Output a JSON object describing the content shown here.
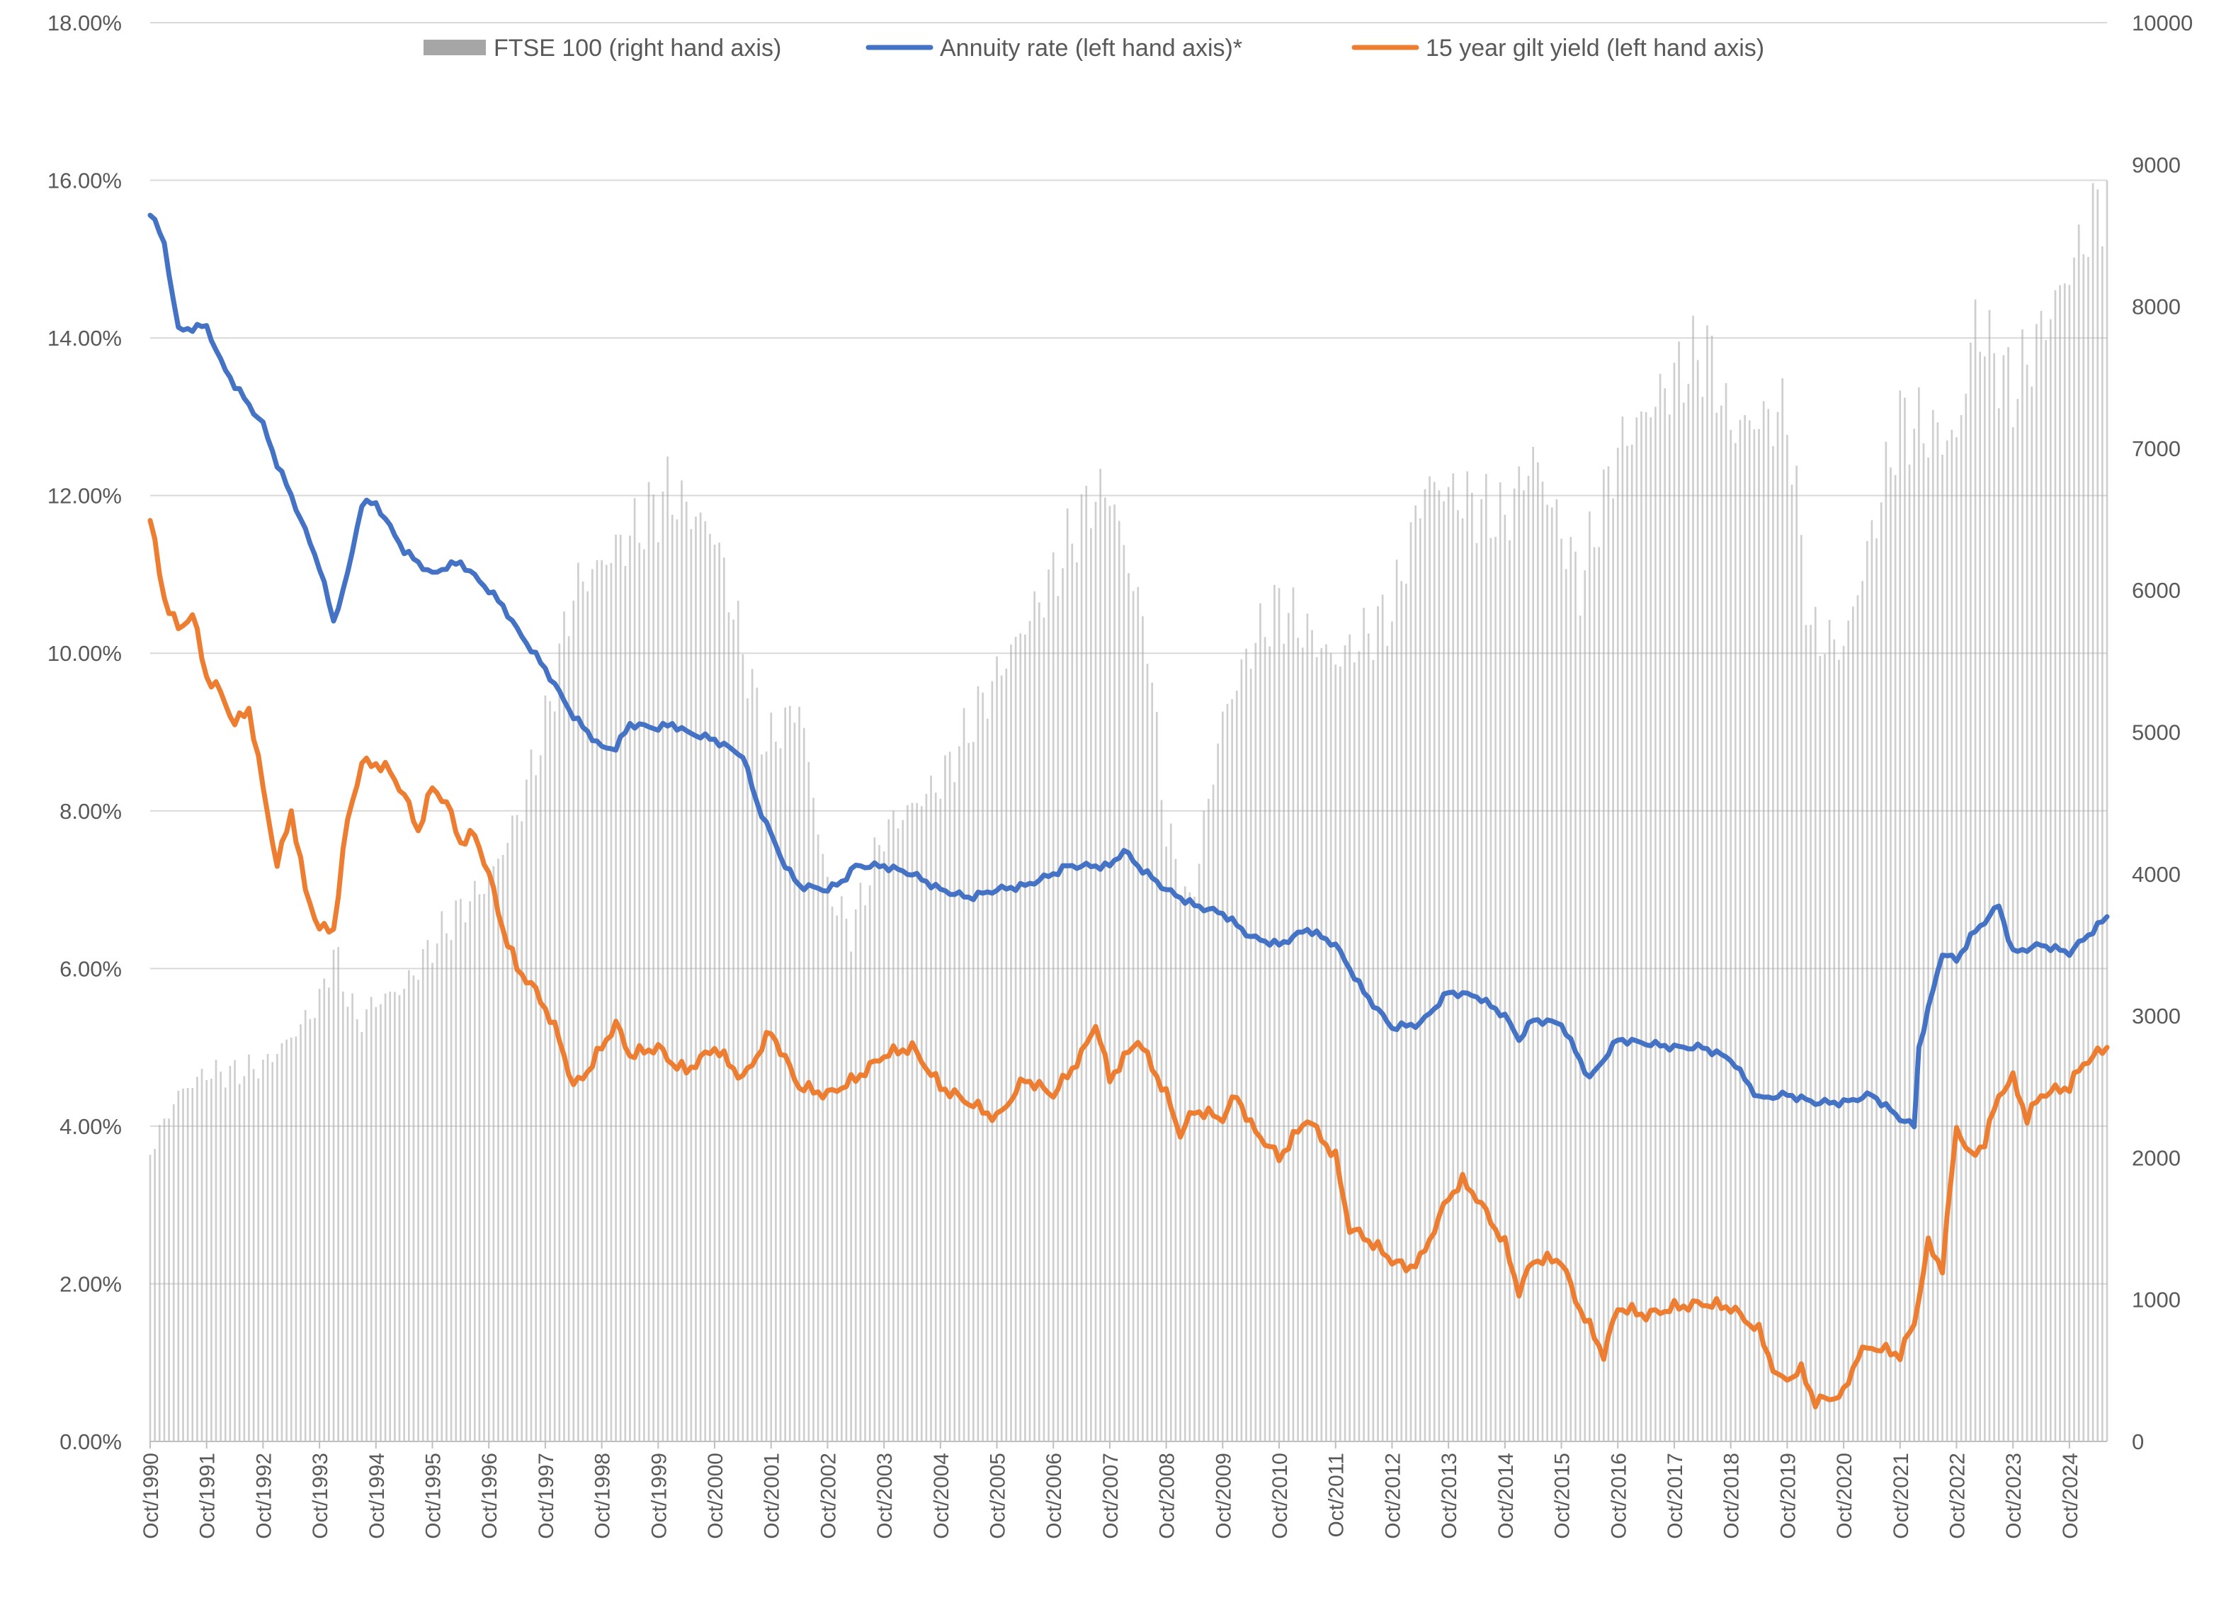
{
  "chart_data": {
    "type": "line",
    "title": "",
    "y_left": {
      "range": [
        0,
        18
      ],
      "ticks": [
        0,
        2,
        4,
        6,
        8,
        10,
        12,
        14,
        16,
        18
      ],
      "tick_labels": [
        "0.00%",
        "2.00%",
        "4.00%",
        "6.00%",
        "8.00%",
        "10.00%",
        "12.00%",
        "14.00%",
        "16.00%",
        "18.00%"
      ]
    },
    "y_right": {
      "range": [
        0,
        10000
      ],
      "ticks": [
        0,
        1000,
        2000,
        3000,
        4000,
        5000,
        6000,
        7000,
        8000,
        9000,
        10000
      ],
      "tick_labels": [
        "0",
        "1000",
        "2000",
        "3000",
        "4000",
        "5000",
        "6000",
        "7000",
        "8000",
        "9000",
        "10000"
      ]
    },
    "x_axis": {
      "start": "Oct/1990",
      "end": "Jun/2025",
      "tick_labels": [
        "Oct/1990",
        "Oct/1991",
        "Oct/1992",
        "Oct/1993",
        "Oct/1994",
        "Oct/1995",
        "Oct/1996",
        "Oct/1997",
        "Oct/1998",
        "Oct/1999",
        "Oct/2000",
        "Oct/2001",
        "Oct/2002",
        "Oct/2003",
        "Oct/2004",
        "Oct/2005",
        "Oct/2006",
        "Oct/2007",
        "Oct/2008",
        "Oct/2009",
        "Oct/2010",
        "Oct/2011",
        "Oct/2012",
        "Oct/2013",
        "Oct/2014",
        "Oct/2015",
        "Oct/2016",
        "Oct/2017",
        "Oct/2018",
        "Oct/2019",
        "Oct/2020",
        "Oct/2021",
        "Oct/2022",
        "Oct/2023",
        "Oct/2024"
      ]
    },
    "grid": true,
    "legend_position": "top",
    "series": [
      {
        "name": "FTSE 100 (right hand axis)",
        "kind": "bar",
        "axis": "right",
        "color": "#a6a6a6",
        "points": [
          [
            "Oct/1990",
            2050
          ],
          [
            "Apr/1991",
            2450
          ],
          [
            "Oct/1991",
            2600
          ],
          [
            "Apr/1992",
            2600
          ],
          [
            "Oct/1992",
            2650
          ],
          [
            "Apr/1993",
            2850
          ],
          [
            "Oct/1993",
            3100
          ],
          [
            "Jan/1994",
            3450
          ],
          [
            "Jun/1994",
            2950
          ],
          [
            "Oct/1994",
            3100
          ],
          [
            "Apr/1995",
            3200
          ],
          [
            "Oct/1995",
            3500
          ],
          [
            "Apr/1996",
            3750
          ],
          [
            "Oct/1996",
            3950
          ],
          [
            "Apr/1997",
            4400
          ],
          [
            "Oct/1997",
            5050
          ],
          [
            "Apr/1998",
            6000
          ],
          [
            "Jun/1999",
            6450
          ],
          [
            "Dec/1999",
            6700
          ],
          [
            "Oct/2000",
            6400
          ],
          [
            "Sep/2001",
            4900
          ],
          [
            "Apr/2002",
            5200
          ],
          [
            "Oct/2002",
            3900
          ],
          [
            "Mar/2003",
            3600
          ],
          [
            "Oct/2003",
            4300
          ],
          [
            "Oct/2004",
            4650
          ],
          [
            "Oct/2005",
            5400
          ],
          [
            "Oct/2006",
            6100
          ],
          [
            "Jun/2007",
            6650
          ],
          [
            "Oct/2007",
            6700
          ],
          [
            "Jun/2008",
            5650
          ],
          [
            "Oct/2008",
            4300
          ],
          [
            "Mar/2009",
            3750
          ],
          [
            "Oct/2009",
            5100
          ],
          [
            "Apr/2010",
            5600
          ],
          [
            "Oct/2010",
            5900
          ],
          [
            "Oct/2011",
            5500
          ],
          [
            "Oct/2012",
            5850
          ],
          [
            "May/2013",
            6750
          ],
          [
            "Oct/2013",
            6700
          ],
          [
            "Oct/2014",
            6500
          ],
          [
            "Apr/2015",
            6950
          ],
          [
            "Feb/2016",
            6050
          ],
          [
            "Oct/2016",
            7000
          ],
          [
            "Oct/2017",
            7500
          ],
          [
            "May/2018",
            7700
          ],
          [
            "Oct/2018",
            7150
          ],
          [
            "Oct/2019",
            7250
          ],
          [
            "Mar/2020",
            5700
          ],
          [
            "Oct/2020",
            5600
          ],
          [
            "Oct/2021",
            7200
          ],
          [
            "Oct/2022",
            7050
          ],
          [
            "Feb/2023",
            7900
          ],
          [
            "Oct/2023",
            7400
          ],
          [
            "Oct/2024",
            8250
          ],
          [
            "Jun/2025",
            8850
          ]
        ]
      },
      {
        "name": "Annuity rate (left hand axis)*",
        "kind": "line",
        "axis": "left",
        "color": "#4472c4",
        "points": [
          [
            "Oct/1990",
            15.6
          ],
          [
            "Jan/1991",
            15.2
          ],
          [
            "Apr/1991",
            14.1
          ],
          [
            "Oct/1991",
            14.15
          ],
          [
            "Jan/1992",
            13.7
          ],
          [
            "Apr/1992",
            13.4
          ],
          [
            "Oct/1992",
            12.9
          ],
          [
            "Jan/1993",
            12.4
          ],
          [
            "Apr/1993",
            12.0
          ],
          [
            "Oct/1993",
            11.1
          ],
          [
            "Jan/1994",
            10.4
          ],
          [
            "Apr/1994",
            11.0
          ],
          [
            "Jul/1994",
            11.9
          ],
          [
            "Oct/1994",
            11.9
          ],
          [
            "Jan/1995",
            11.6
          ],
          [
            "Apr/1995",
            11.3
          ],
          [
            "Oct/1995",
            11.0
          ],
          [
            "Jan/1996",
            11.1
          ],
          [
            "Apr/1996",
            11.15
          ],
          [
            "Oct/1996",
            10.8
          ],
          [
            "Jan/1997",
            10.6
          ],
          [
            "Apr/1997",
            10.3
          ],
          [
            "Oct/1997",
            9.8
          ],
          [
            "Jan/1998",
            9.5
          ],
          [
            "Apr/1998",
            9.2
          ],
          [
            "Oct/1998",
            8.8
          ],
          [
            "Jan/1999",
            8.8
          ],
          [
            "Apr/1999",
            9.1
          ],
          [
            "Oct/1999",
            9.05
          ],
          [
            "Jan/2000",
            9.1
          ],
          [
            "Apr/2000",
            9.0
          ],
          [
            "Oct/2000",
            8.9
          ],
          [
            "Jan/2001",
            8.8
          ],
          [
            "Apr/2001",
            8.7
          ],
          [
            "Jul/2001",
            8.1
          ],
          [
            "Oct/2001",
            7.7
          ],
          [
            "Jan/2002",
            7.3
          ],
          [
            "Apr/2002",
            7.05
          ],
          [
            "Oct/2002",
            7.0
          ],
          [
            "Jan/2003",
            7.1
          ],
          [
            "Apr/2003",
            7.3
          ],
          [
            "Oct/2003",
            7.3
          ],
          [
            "Apr/2004",
            7.2
          ],
          [
            "Oct/2004",
            7.0
          ],
          [
            "Apr/2005",
            6.9
          ],
          [
            "Oct/2005",
            7.0
          ],
          [
            "Apr/2006",
            7.05
          ],
          [
            "Oct/2006",
            7.2
          ],
          [
            "Jan/2007",
            7.3
          ],
          [
            "Oct/2007",
            7.3
          ],
          [
            "Jan/2008",
            7.5
          ],
          [
            "Apr/2008",
            7.3
          ],
          [
            "Oct/2008",
            7.0
          ],
          [
            "Apr/2009",
            6.8
          ],
          [
            "Oct/2009",
            6.7
          ],
          [
            "Apr/2010",
            6.4
          ],
          [
            "Oct/2010",
            6.3
          ],
          [
            "Apr/2011",
            6.5
          ],
          [
            "Oct/2011",
            6.3
          ],
          [
            "Apr/2012",
            5.7
          ],
          [
            "Oct/2012",
            5.25
          ],
          [
            "Apr/2013",
            5.3
          ],
          [
            "Oct/2013",
            5.7
          ],
          [
            "Apr/2014",
            5.65
          ],
          [
            "Oct/2014",
            5.4
          ],
          [
            "Jan/2015",
            5.1
          ],
          [
            "Apr/2015",
            5.35
          ],
          [
            "Oct/2015",
            5.3
          ],
          [
            "Apr/2016",
            4.6
          ],
          [
            "Oct/2016",
            5.1
          ],
          [
            "Apr/2017",
            5.05
          ],
          [
            "Oct/2017",
            5.0
          ],
          [
            "Apr/2018",
            5.0
          ],
          [
            "Oct/2018",
            4.85
          ],
          [
            "Apr/2019",
            4.35
          ],
          [
            "Oct/2019",
            4.4
          ],
          [
            "Apr/2020",
            4.3
          ],
          [
            "Oct/2020",
            4.3
          ],
          [
            "Apr/2021",
            4.4
          ],
          [
            "Oct/2021",
            4.1
          ],
          [
            "Jan/2022",
            4.0
          ],
          [
            "Feb/2022",
            5.0
          ],
          [
            "Jul/2022",
            6.2
          ],
          [
            "Oct/2022",
            6.1
          ],
          [
            "Jan/2023",
            6.4
          ],
          [
            "Jul/2023",
            6.8
          ],
          [
            "Oct/2023",
            6.2
          ],
          [
            "Apr/2024",
            6.3
          ],
          [
            "Oct/2024",
            6.2
          ],
          [
            "Jun/2025",
            6.65
          ]
        ]
      },
      {
        "name": "15 year gilt yield (left hand axis)",
        "kind": "line",
        "axis": "left",
        "color": "#ed7d31",
        "points": [
          [
            "Oct/1990",
            11.7
          ],
          [
            "Jan/1991",
            10.7
          ],
          [
            "Apr/1991",
            10.3
          ],
          [
            "Jul/1991",
            10.5
          ],
          [
            "Oct/1991",
            9.7
          ],
          [
            "Jan/1992",
            9.5
          ],
          [
            "Apr/1992",
            9.1
          ],
          [
            "Jul/1992",
            9.3
          ],
          [
            "Oct/1992",
            8.3
          ],
          [
            "Jan/1993",
            7.3
          ],
          [
            "Apr/1993",
            8.0
          ],
          [
            "Jul/1993",
            7.0
          ],
          [
            "Oct/1993",
            6.5
          ],
          [
            "Jan/1994",
            6.5
          ],
          [
            "Apr/1994",
            7.9
          ],
          [
            "Jul/1994",
            8.6
          ],
          [
            "Oct/1994",
            8.6
          ],
          [
            "Jan/1995",
            8.5
          ],
          [
            "Apr/1995",
            8.2
          ],
          [
            "Jul/1995",
            7.75
          ],
          [
            "Oct/1995",
            8.3
          ],
          [
            "Jan/1996",
            8.1
          ],
          [
            "Apr/1996",
            7.6
          ],
          [
            "Jul/1996",
            7.7
          ],
          [
            "Oct/1996",
            7.2
          ],
          [
            "Jan/1997",
            6.5
          ],
          [
            "Apr/1997",
            6.0
          ],
          [
            "Jul/1997",
            5.8
          ],
          [
            "Oct/1997",
            5.5
          ],
          [
            "Jan/1998",
            5.1
          ],
          [
            "Apr/1998",
            4.5
          ],
          [
            "Jul/1998",
            4.7
          ],
          [
            "Oct/1998",
            5.0
          ],
          [
            "Jan/1999",
            5.3
          ],
          [
            "Apr/1999",
            4.9
          ],
          [
            "Oct/1999",
            5.0
          ],
          [
            "Jan/2000",
            4.8
          ],
          [
            "Apr/2000",
            4.7
          ],
          [
            "Oct/2000",
            5.0
          ],
          [
            "Apr/2001",
            4.6
          ],
          [
            "Oct/2001",
            5.2
          ],
          [
            "Apr/2002",
            4.5
          ],
          [
            "Oct/2002",
            4.4
          ],
          [
            "Apr/2003",
            4.6
          ],
          [
            "Oct/2003",
            4.9
          ],
          [
            "Apr/2004",
            5.0
          ],
          [
            "Oct/2004",
            4.5
          ],
          [
            "Apr/2005",
            4.3
          ],
          [
            "Oct/2005",
            4.1
          ],
          [
            "Apr/2006",
            4.6
          ],
          [
            "Oct/2006",
            4.4
          ],
          [
            "Apr/2007",
            4.9
          ],
          [
            "Jul/2007",
            5.3
          ],
          [
            "Oct/2007",
            4.6
          ],
          [
            "Apr/2008",
            5.1
          ],
          [
            "Oct/2008",
            4.4
          ],
          [
            "Jan/2009",
            3.9
          ],
          [
            "Apr/2009",
            4.2
          ],
          [
            "Oct/2009",
            4.1
          ],
          [
            "Jan/2010",
            4.4
          ],
          [
            "Apr/2010",
            4.0
          ],
          [
            "Oct/2010",
            3.6
          ],
          [
            "Apr/2011",
            4.1
          ],
          [
            "Oct/2011",
            3.6
          ],
          [
            "Jan/2012",
            2.7
          ],
          [
            "Apr/2012",
            2.6
          ],
          [
            "Oct/2012",
            2.3
          ],
          [
            "Jan/2013",
            2.2
          ],
          [
            "Apr/2013",
            2.3
          ],
          [
            "Oct/2013",
            3.1
          ],
          [
            "Jan/2014",
            3.3
          ],
          [
            "Apr/2014",
            3.1
          ],
          [
            "Oct/2014",
            2.5
          ],
          [
            "Jan/2015",
            1.9
          ],
          [
            "Apr/2015",
            2.3
          ],
          [
            "Oct/2015",
            2.3
          ],
          [
            "Jan/2016",
            1.8
          ],
          [
            "Jul/2016",
            1.1
          ],
          [
            "Oct/2016",
            1.7
          ],
          [
            "Apr/2017",
            1.6
          ],
          [
            "Oct/2017",
            1.7
          ],
          [
            "Apr/2018",
            1.75
          ],
          [
            "Oct/2018",
            1.7
          ],
          [
            "Apr/2019",
            1.4
          ],
          [
            "Aug/2019",
            0.8
          ],
          [
            "Oct/2019",
            0.8
          ],
          [
            "Jan/2020",
            0.9
          ],
          [
            "Apr/2020",
            0.5
          ],
          [
            "Jul/2020",
            0.55
          ],
          [
            "Oct/2020",
            0.6
          ],
          [
            "Jan/2021",
            1.1
          ],
          [
            "Apr/2021",
            1.2
          ],
          [
            "Oct/2021",
            1.1
          ],
          [
            "Jan/2022",
            1.5
          ],
          [
            "Apr/2022",
            2.5
          ],
          [
            "Jul/2022",
            2.2
          ],
          [
            "Oct/2022",
            4.0
          ],
          [
            "Jan/2023",
            3.6
          ],
          [
            "Apr/2023",
            3.8
          ],
          [
            "Jul/2023",
            4.4
          ],
          [
            "Oct/2023",
            4.6
          ],
          [
            "Jan/2024",
            4.1
          ],
          [
            "Apr/2024",
            4.4
          ],
          [
            "Oct/2024",
            4.5
          ],
          [
            "Jan/2025",
            4.8
          ],
          [
            "Jun/2025",
            5.0
          ]
        ]
      }
    ]
  }
}
